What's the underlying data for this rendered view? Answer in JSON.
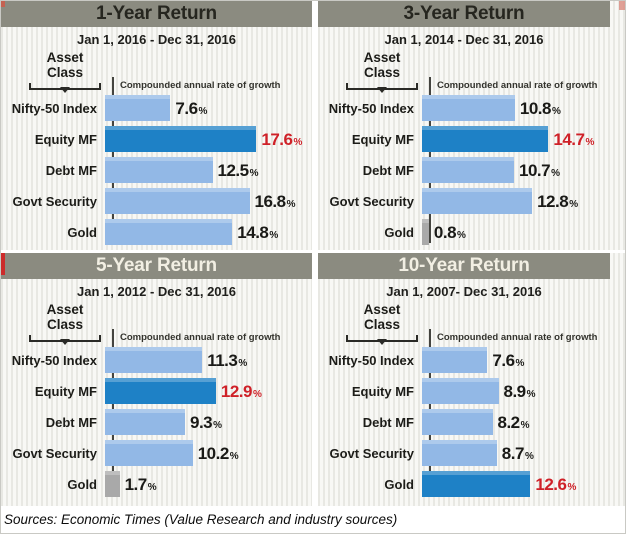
{
  "sources": {
    "text": "Sources: Economic Times (Value Research and industry sources)"
  },
  "shared": {
    "asset_class_line1": "Asset",
    "asset_class_line2": "Class",
    "percent_sign": "%"
  },
  "colors": {
    "header_band": "#8b8b80",
    "header_text_dark": "#26261f",
    "header_text_light": "#f2efe3",
    "bar_light_blue": "#92b8e6",
    "bar_dark_blue": "#1e81c6",
    "bar_gray": "#a9a9a9",
    "value_text": "#1a1a17",
    "value_highlight_red": "#cf2128",
    "axis_line": "#44443f"
  },
  "chart_data": [
    {
      "type": "bar",
      "title": "1-Year Return",
      "subtitle": "Jan 1, 2016 - Dec 31, 2016",
      "xlabel": "Compounded annual rate of growth",
      "ylabel": "Asset Class",
      "categories": [
        "Nifty-50 Index",
        "Equity MF",
        "Debt MF",
        "Govt Security",
        "Gold"
      ],
      "values": [
        7.6,
        17.6,
        12.5,
        16.8,
        14.8
      ],
      "value_labels": [
        "7.6",
        "17.6",
        "12.5",
        "16.8",
        "14.8"
      ],
      "unit": "%",
      "highlight_index": 1,
      "gray_indices": [],
      "header_text_style": "dark",
      "xlim": [
        0,
        20
      ],
      "grid": false,
      "legend": false
    },
    {
      "type": "bar",
      "title": "3-Year Return",
      "subtitle": "Jan 1, 2014 - Dec 31, 2016",
      "xlabel": "Compounded annual rate of growth",
      "ylabel": "Asset Class",
      "categories": [
        "Nifty-50 Index",
        "Equity MF",
        "Debt MF",
        "Govt Security",
        "Gold"
      ],
      "values": [
        10.8,
        14.7,
        10.7,
        12.8,
        0.8
      ],
      "value_labels": [
        "10.8",
        "14.7",
        "10.7",
        "12.8",
        "0.8"
      ],
      "unit": "%",
      "highlight_index": 1,
      "gray_indices": [
        4
      ],
      "header_text_style": "dark",
      "xlim": [
        0,
        20
      ],
      "grid": false,
      "legend": false
    },
    {
      "type": "bar",
      "title": "5-Year Return",
      "subtitle": "Jan 1, 2012 - Dec 31, 2016",
      "xlabel": "Compounded annual rate of growth",
      "ylabel": "Asset Class",
      "categories": [
        "Nifty-50 Index",
        "Equity MF",
        "Debt MF",
        "Govt Security",
        "Gold"
      ],
      "values": [
        11.3,
        12.9,
        9.3,
        10.2,
        1.7
      ],
      "value_labels": [
        "11.3",
        "12.9",
        "9.3",
        "10.2",
        "1.7"
      ],
      "unit": "%",
      "highlight_index": 1,
      "gray_indices": [
        4
      ],
      "header_text_style": "light",
      "xlim": [
        0,
        20
      ],
      "grid": false,
      "legend": false
    },
    {
      "type": "bar",
      "title": "10-Year Return",
      "subtitle": "Jan 1, 2007- Dec 31, 2016",
      "xlabel": "Compounded annual rate of growth",
      "ylabel": "Asset Class",
      "categories": [
        "Nifty-50 Index",
        "Equity MF",
        "Debt MF",
        "Govt Security",
        "Gold"
      ],
      "values": [
        7.6,
        8.9,
        8.2,
        8.7,
        12.6
      ],
      "value_labels": [
        "7.6",
        "8.9",
        "8.2",
        "8.7",
        "12.6"
      ],
      "unit": "%",
      "highlight_index": 4,
      "gray_indices": [],
      "header_text_style": "light",
      "xlim": [
        0,
        20
      ],
      "grid": false,
      "legend": false
    }
  ]
}
